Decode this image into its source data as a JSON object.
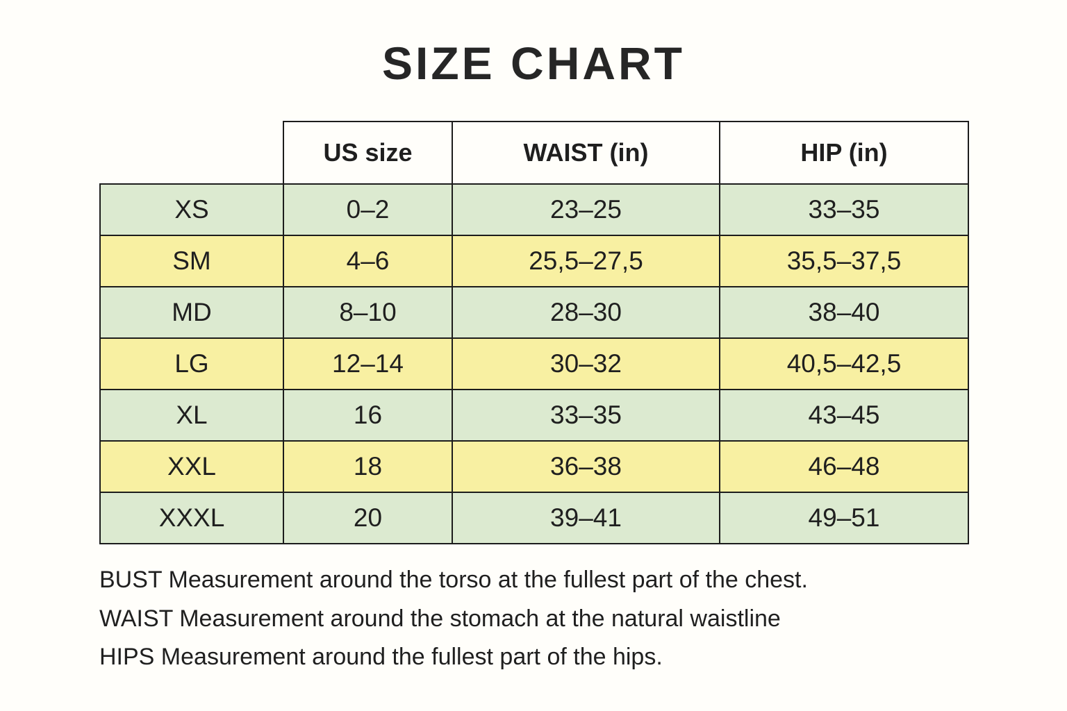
{
  "title": "SIZE CHART",
  "chart_data": {
    "type": "table",
    "title": "SIZE CHART",
    "columns": [
      "",
      "US size",
      "WAIST (in)",
      "HIP (in)"
    ],
    "rows": [
      [
        "XS",
        "0–2",
        "23–25",
        "33–35"
      ],
      [
        "SM",
        "4–6",
        "25,5–27,5",
        "35,5–37,5"
      ],
      [
        "MD",
        "8–10",
        "28–30",
        "38–40"
      ],
      [
        "LG",
        "12–14",
        "30–32",
        "40,5–42,5"
      ],
      [
        "XL",
        "16",
        "33–35",
        "43–45"
      ],
      [
        "XXL",
        "18",
        "36–38",
        "46–48"
      ],
      [
        "XXXL",
        "20",
        "39–41",
        "49–51"
      ]
    ],
    "row_colors": [
      "green",
      "yellow",
      "green",
      "yellow",
      "green",
      "yellow",
      "green"
    ],
    "layout": "header row spans last 3 columns only; first column has no header cell"
  },
  "notes": [
    "BUST Measurement around the torso at the fullest part of the chest.",
    "WAIST Measurement around the stomach at the natural waistline",
    "HIPS Measurement around the fullest part of the hips."
  ],
  "colors": {
    "background": "#fffefa",
    "green_row": "#dcead0",
    "yellow_row": "#f8f0a2",
    "border": "#1c1c1c",
    "text": "#1f1f1f"
  }
}
